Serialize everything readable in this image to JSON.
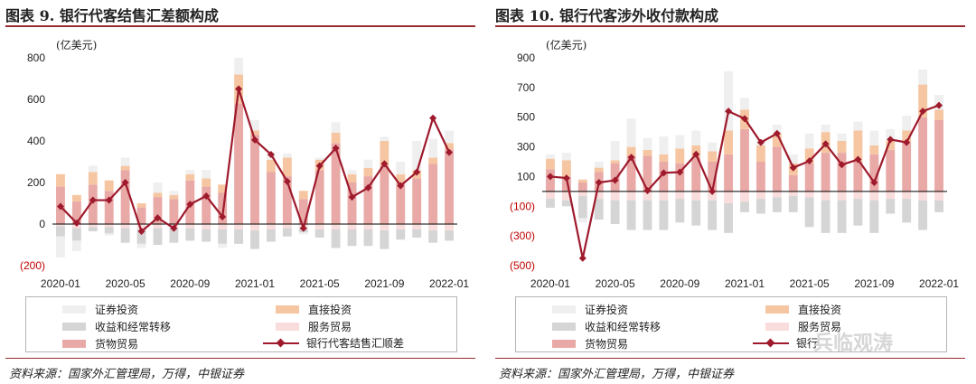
{
  "left": {
    "title": "图表 9. 银行代客结售汇差额构成",
    "source": "资料来源：国家外汇管理局，万得，中银证券",
    "legend": {
      "securities": "证券投资",
      "direct": "直接投资",
      "income": "收益和经常转移",
      "services": "服务贸易",
      "goods": "货物贸易",
      "net": "银行代客结售汇顺差"
    }
  },
  "right": {
    "title": "图表 10. 银行代客涉外收付款构成",
    "source": "资料来源：国家外汇管理局，万得，中银证券",
    "legend": {
      "securities": "证券投资",
      "direct": "直接投资",
      "income": "收益和经常转移",
      "services": "服务贸易",
      "goods": "货物贸易",
      "net": "银行"
    }
  },
  "watermark": "兵临观涛",
  "colors": {
    "goods": "#e8a9a7",
    "services": "#f9dcdc",
    "income": "#d5d5d5",
    "direct": "#f6c6a2",
    "securities": "#efefef",
    "line": "#9e1a2c",
    "negative_tick": "#c00000"
  },
  "chart_data": [
    {
      "type": "bar",
      "stacked": true,
      "ylabel": "(亿美元)",
      "ylim": [
        -200,
        800
      ],
      "yticks": [
        "(200)",
        "0",
        "200",
        "400",
        "600",
        "800"
      ],
      "ytick_values": [
        -200,
        0,
        200,
        400,
        600,
        800
      ],
      "xtick_labels": [
        "2020-01",
        "2020-05",
        "2020-09",
        "2021-01",
        "2021-05",
        "2021-09",
        "2022-01"
      ],
      "xtick_index": [
        0,
        4,
        8,
        12,
        16,
        20,
        24
      ],
      "categories": [
        "2020-01",
        "2020-02",
        "2020-03",
        "2020-04",
        "2020-05",
        "2020-06",
        "2020-07",
        "2020-08",
        "2020-09",
        "2020-10",
        "2020-11",
        "2020-12",
        "2021-01",
        "2021-02",
        "2021-03",
        "2021-04",
        "2021-05",
        "2021-06",
        "2021-07",
        "2021-08",
        "2021-09",
        "2021-10",
        "2021-11",
        "2021-12",
        "2022-01"
      ],
      "series": [
        {
          "key": "goods",
          "values": [
            180,
            110,
            190,
            160,
            260,
            80,
            130,
            120,
            210,
            180,
            150,
            580,
            430,
            250,
            230,
            120,
            260,
            390,
            200,
            230,
            280,
            200,
            220,
            290,
            360
          ]
        },
        {
          "key": "services",
          "values": [
            -10,
            -20,
            -15,
            -15,
            -20,
            -25,
            -20,
            -20,
            -20,
            -25,
            -25,
            -25,
            -30,
            -25,
            -20,
            -20,
            -25,
            -25,
            -25,
            -25,
            -30,
            -25,
            -25,
            -30,
            -30
          ]
        },
        {
          "key": "income",
          "values": [
            -50,
            -60,
            -20,
            -30,
            -70,
            -70,
            -80,
            -70,
            -60,
            -60,
            -70,
            -70,
            -90,
            -60,
            -40,
            -20,
            -40,
            -90,
            -80,
            -80,
            -90,
            -50,
            -40,
            -60,
            -50
          ]
        },
        {
          "key": "direct",
          "values": [
            60,
            30,
            60,
            50,
            20,
            20,
            20,
            20,
            30,
            40,
            40,
            140,
            20,
            60,
            90,
            40,
            50,
            50,
            40,
            40,
            120,
            40,
            40,
            30,
            30
          ]
        },
        {
          "key": "securities",
          "values": [
            -100,
            -50,
            30,
            -10,
            40,
            -20,
            50,
            20,
            20,
            40,
            -20,
            80,
            50,
            30,
            20,
            -10,
            10,
            50,
            20,
            40,
            20,
            60,
            140,
            90,
            60
          ]
        },
        {
          "key": "net",
          "type": "line",
          "values": [
            85,
            5,
            115,
            115,
            200,
            -35,
            30,
            -20,
            95,
            135,
            35,
            650,
            405,
            335,
            205,
            -20,
            280,
            365,
            130,
            175,
            290,
            185,
            250,
            510,
            345
          ]
        }
      ]
    },
    {
      "type": "bar",
      "stacked": true,
      "ylabel": "(亿美元)",
      "ylim": [
        -500,
        900
      ],
      "yticks": [
        "(500)",
        "(300)",
        "(100)",
        "100",
        "300",
        "500",
        "700",
        "900"
      ],
      "ytick_values": [
        -500,
        -300,
        -100,
        100,
        300,
        500,
        700,
        900
      ],
      "xtick_labels": [
        "2020-01",
        "2020-05",
        "2020-09",
        "2021-01",
        "2021-05",
        "2021-09",
        "2022-01"
      ],
      "xtick_index": [
        0,
        4,
        8,
        12,
        16,
        20,
        24
      ],
      "categories": [
        "2020-01",
        "2020-02",
        "2020-03",
        "2020-04",
        "2020-05",
        "2020-06",
        "2020-07",
        "2020-08",
        "2020-09",
        "2020-10",
        "2020-11",
        "2020-12",
        "2021-01",
        "2021-02",
        "2021-03",
        "2021-04",
        "2021-05",
        "2021-06",
        "2021-07",
        "2021-08",
        "2021-09",
        "2021-10",
        "2021-11",
        "2021-12",
        "2022-01"
      ],
      "series": [
        {
          "key": "goods",
          "values": [
            150,
            100,
            60,
            130,
            190,
            240,
            240,
            200,
            190,
            230,
            200,
            250,
            420,
            200,
            300,
            110,
            190,
            260,
            260,
            200,
            250,
            280,
            330,
            500,
            480
          ]
        },
        {
          "key": "services",
          "values": [
            -50,
            -60,
            -30,
            -50,
            -60,
            -60,
            -60,
            -60,
            -50,
            -60,
            -60,
            -80,
            -70,
            -50,
            -40,
            -30,
            -40,
            -60,
            -60,
            -50,
            -60,
            -50,
            -50,
            -60,
            -60
          ]
        },
        {
          "key": "income",
          "values": [
            -60,
            -40,
            -150,
            -140,
            -160,
            -200,
            -200,
            -200,
            -160,
            -170,
            -200,
            -200,
            -70,
            -100,
            -100,
            -110,
            -200,
            -220,
            -220,
            -180,
            -220,
            -100,
            -160,
            -200,
            -80
          ]
        },
        {
          "key": "direct",
          "values": [
            70,
            110,
            20,
            30,
            20,
            60,
            40,
            50,
            100,
            80,
            70,
            160,
            130,
            110,
            90,
            80,
            100,
            140,
            80,
            210,
            60,
            60,
            80,
            220,
            70
          ]
        },
        {
          "key": "securities",
          "values": [
            30,
            50,
            -30,
            40,
            130,
            190,
            80,
            120,
            90,
            100,
            60,
            400,
            80,
            40,
            60,
            60,
            100,
            50,
            50,
            60,
            100,
            80,
            100,
            100,
            100
          ]
        },
        {
          "key": "net",
          "type": "line",
          "values": [
            100,
            90,
            -450,
            60,
            75,
            230,
            5,
            125,
            130,
            250,
            0,
            540,
            490,
            330,
            390,
            160,
            205,
            320,
            180,
            215,
            60,
            350,
            330,
            540,
            580
          ]
        }
      ]
    }
  ]
}
